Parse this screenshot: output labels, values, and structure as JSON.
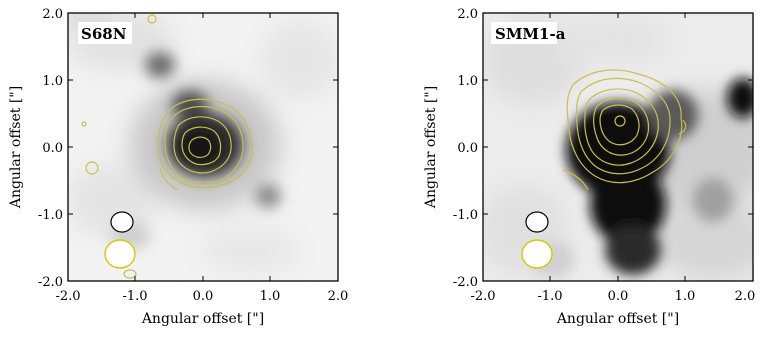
{
  "panels": [
    {
      "source_label": "S68N",
      "x_axis_label": "Angular offset [\"]",
      "y_axis_label": "Angular offset [\"]",
      "x_ticks": [
        "-2.0",
        "-1.0",
        "0.0",
        "1.0",
        "2.0"
      ],
      "y_ticks": [
        "2.0",
        "1.0",
        "0.0",
        "-1.0",
        "-2.0"
      ],
      "beam_colors": {
        "grayscale_beam": "#000000",
        "contour_beam": "#d4c800"
      }
    },
    {
      "source_label": "SMM1-a",
      "x_axis_label": "Angular offset [\"]",
      "y_axis_label": "Angular offset [\"]",
      "x_ticks": [
        "-2.0",
        "-1.0",
        "0.0",
        "1.0",
        "2.0"
      ],
      "y_ticks": [
        "2.0",
        "1.0",
        "0.0",
        "-1.0",
        "-2.0"
      ],
      "beam_colors": {
        "grayscale_beam": "#000000",
        "contour_beam": "#d4c800"
      }
    }
  ],
  "colors": {
    "contour": "#c8c04a",
    "frame": "#000000"
  }
}
